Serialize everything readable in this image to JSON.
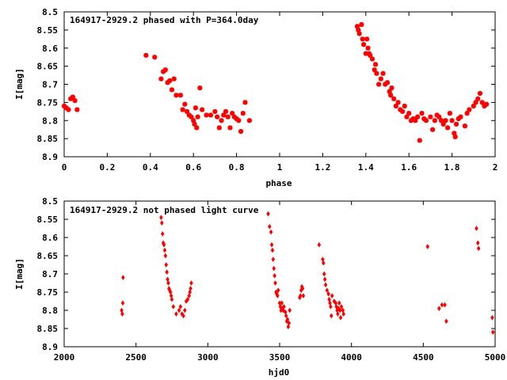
{
  "chart_data": [
    {
      "type": "scatter",
      "title": "164917-2929.2 phased with P=364.0day",
      "xlabel": "phase",
      "ylabel": "I[mag]",
      "xlim": [
        0,
        2
      ],
      "ylim": [
        8.5,
        8.9
      ],
      "y_inverted": true,
      "marker": "star",
      "color": "#ff0000",
      "grid": false,
      "xticks": [
        "0",
        "0.2",
        "0.4",
        "0.6",
        "0.8",
        "1",
        "1.2",
        "1.4",
        "1.6",
        "1.8",
        "2"
      ],
      "yticks": [
        "8.5",
        "8.55",
        "8.6",
        "8.65",
        "8.7",
        "8.75",
        "8.8",
        "8.85",
        "8.9"
      ],
      "points": [
        [
          0.0,
          8.76
        ],
        [
          0.01,
          8.765
        ],
        [
          0.02,
          8.77
        ],
        [
          0.03,
          8.74
        ],
        [
          0.04,
          8.735
        ],
        [
          0.05,
          8.745
        ],
        [
          0.06,
          8.77
        ],
        [
          0.38,
          8.62
        ],
        [
          0.42,
          8.625
        ],
        [
          0.45,
          8.685
        ],
        [
          0.46,
          8.665
        ],
        [
          0.47,
          8.66
        ],
        [
          0.48,
          8.695
        ],
        [
          0.49,
          8.69
        ],
        [
          0.5,
          8.715
        ],
        [
          0.51,
          8.685
        ],
        [
          0.52,
          8.73
        ],
        [
          0.54,
          8.73
        ],
        [
          0.55,
          8.77
        ],
        [
          0.56,
          8.755
        ],
        [
          0.57,
          8.775
        ],
        [
          0.58,
          8.785
        ],
        [
          0.59,
          8.79
        ],
        [
          0.6,
          8.8
        ],
        [
          0.605,
          8.81
        ],
        [
          0.61,
          8.765
        ],
        [
          0.615,
          8.82
        ],
        [
          0.62,
          8.79
        ],
        [
          0.63,
          8.71
        ],
        [
          0.64,
          8.77
        ],
        [
          0.66,
          8.785
        ],
        [
          0.68,
          8.785
        ],
        [
          0.7,
          8.775
        ],
        [
          0.71,
          8.79
        ],
        [
          0.72,
          8.82
        ],
        [
          0.73,
          8.8
        ],
        [
          0.74,
          8.785
        ],
        [
          0.75,
          8.775
        ],
        [
          0.76,
          8.79
        ],
        [
          0.77,
          8.82
        ],
        [
          0.78,
          8.78
        ],
        [
          0.79,
          8.79
        ],
        [
          0.8,
          8.795
        ],
        [
          0.81,
          8.8
        ],
        [
          0.82,
          8.83
        ],
        [
          0.83,
          8.78
        ],
        [
          0.84,
          8.75
        ],
        [
          0.86,
          8.8
        ],
        [
          1.36,
          8.54
        ],
        [
          1.365,
          8.55
        ],
        [
          1.37,
          8.56
        ],
        [
          1.38,
          8.535
        ],
        [
          1.385,
          8.575
        ],
        [
          1.39,
          8.59
        ],
        [
          1.4,
          8.615
        ],
        [
          1.405,
          8.575
        ],
        [
          1.41,
          8.6
        ],
        [
          1.415,
          8.615
        ],
        [
          1.42,
          8.62
        ],
        [
          1.43,
          8.63
        ],
        [
          1.44,
          8.66
        ],
        [
          1.445,
          8.645
        ],
        [
          1.45,
          8.67
        ],
        [
          1.46,
          8.7
        ],
        [
          1.47,
          8.685
        ],
        [
          1.48,
          8.67
        ],
        [
          1.49,
          8.7
        ],
        [
          1.5,
          8.695
        ],
        [
          1.51,
          8.72
        ],
        [
          1.515,
          8.73
        ],
        [
          1.52,
          8.71
        ],
        [
          1.53,
          8.74
        ],
        [
          1.54,
          8.76
        ],
        [
          1.55,
          8.75
        ],
        [
          1.56,
          8.77
        ],
        [
          1.57,
          8.775
        ],
        [
          1.58,
          8.76
        ],
        [
          1.59,
          8.79
        ],
        [
          1.6,
          8.78
        ],
        [
          1.61,
          8.8
        ],
        [
          1.62,
          8.795
        ],
        [
          1.63,
          8.8
        ],
        [
          1.64,
          8.79
        ],
        [
          1.65,
          8.855
        ],
        [
          1.66,
          8.78
        ],
        [
          1.67,
          8.795
        ],
        [
          1.68,
          8.8
        ],
        [
          1.7,
          8.79
        ],
        [
          1.71,
          8.825
        ],
        [
          1.72,
          8.8
        ],
        [
          1.73,
          8.785
        ],
        [
          1.74,
          8.79
        ],
        [
          1.75,
          8.8
        ],
        [
          1.76,
          8.81
        ],
        [
          1.77,
          8.8
        ],
        [
          1.78,
          8.82
        ],
        [
          1.79,
          8.78
        ],
        [
          1.8,
          8.8
        ],
        [
          1.81,
          8.835
        ],
        [
          1.815,
          8.845
        ],
        [
          1.82,
          8.81
        ],
        [
          1.83,
          8.795
        ],
        [
          1.84,
          8.79
        ],
        [
          1.86,
          8.815
        ],
        [
          1.87,
          8.78
        ],
        [
          1.88,
          8.77
        ],
        [
          1.9,
          8.76
        ],
        [
          1.91,
          8.75
        ],
        [
          1.92,
          8.74
        ],
        [
          1.93,
          8.725
        ],
        [
          1.94,
          8.75
        ],
        [
          1.95,
          8.76
        ],
        [
          1.96,
          8.755
        ]
      ]
    },
    {
      "type": "scatter",
      "title": "164917-2929.2 not phased light curve",
      "xlabel": "hjd0",
      "ylabel": "I[mag]",
      "xlim": [
        2000,
        5000
      ],
      "ylim": [
        8.5,
        8.9
      ],
      "y_inverted": true,
      "marker": "diamond",
      "color": "#ff0000",
      "grid": false,
      "xticks": [
        "2000",
        "2500",
        "3000",
        "3500",
        "4000",
        "4500",
        "5000"
      ],
      "yticks": [
        "8.5",
        "8.55",
        "8.6",
        "8.65",
        "8.7",
        "8.75",
        "8.8",
        "8.85",
        "8.9"
      ],
      "points": [
        [
          2400,
          8.8
        ],
        [
          2405,
          8.81
        ],
        [
          2408,
          8.78
        ],
        [
          2410,
          8.71
        ],
        [
          2675,
          8.545
        ],
        [
          2680,
          8.56
        ],
        [
          2685,
          8.59
        ],
        [
          2690,
          8.615
        ],
        [
          2695,
          8.62
        ],
        [
          2700,
          8.635
        ],
        [
          2705,
          8.65
        ],
        [
          2710,
          8.675
        ],
        [
          2715,
          8.695
        ],
        [
          2720,
          8.715
        ],
        [
          2725,
          8.725
        ],
        [
          2730,
          8.74
        ],
        [
          2735,
          8.745
        ],
        [
          2740,
          8.75
        ],
        [
          2745,
          8.76
        ],
        [
          2750,
          8.77
        ],
        [
          2760,
          8.79
        ],
        [
          2780,
          8.81
        ],
        [
          2800,
          8.8
        ],
        [
          2810,
          8.79
        ],
        [
          2820,
          8.81
        ],
        [
          2830,
          8.815
        ],
        [
          2840,
          8.8
        ],
        [
          2850,
          8.775
        ],
        [
          2860,
          8.77
        ],
        [
          2870,
          8.76
        ],
        [
          2875,
          8.75
        ],
        [
          2880,
          8.74
        ],
        [
          2885,
          8.725
        ],
        [
          3420,
          8.535
        ],
        [
          3430,
          8.57
        ],
        [
          3440,
          8.585
        ],
        [
          3445,
          8.62
        ],
        [
          3450,
          8.635
        ],
        [
          3455,
          8.66
        ],
        [
          3460,
          8.685
        ],
        [
          3465,
          8.705
        ],
        [
          3470,
          8.725
        ],
        [
          3475,
          8.75
        ],
        [
          3480,
          8.755
        ],
        [
          3485,
          8.76
        ],
        [
          3490,
          8.745
        ],
        [
          3500,
          8.78
        ],
        [
          3505,
          8.79
        ],
        [
          3510,
          8.8
        ],
        [
          3515,
          8.78
        ],
        [
          3520,
          8.795
        ],
        [
          3525,
          8.8
        ],
        [
          3530,
          8.79
        ],
        [
          3540,
          8.805
        ],
        [
          3545,
          8.815
        ],
        [
          3550,
          8.83
        ],
        [
          3555,
          8.825
        ],
        [
          3560,
          8.845
        ],
        [
          3565,
          8.835
        ],
        [
          3570,
          8.8
        ],
        [
          3640,
          8.765
        ],
        [
          3645,
          8.76
        ],
        [
          3650,
          8.745
        ],
        [
          3655,
          8.735
        ],
        [
          3660,
          8.74
        ],
        [
          3665,
          8.76
        ],
        [
          3775,
          8.62
        ],
        [
          3800,
          8.66
        ],
        [
          3805,
          8.67
        ],
        [
          3810,
          8.7
        ],
        [
          3815,
          8.715
        ],
        [
          3820,
          8.73
        ],
        [
          3830,
          8.745
        ],
        [
          3840,
          8.755
        ],
        [
          3845,
          8.77
        ],
        [
          3850,
          8.78
        ],
        [
          3855,
          8.79
        ],
        [
          3860,
          8.815
        ],
        [
          3865,
          8.76
        ],
        [
          3880,
          8.775
        ],
        [
          3890,
          8.78
        ],
        [
          3895,
          8.79
        ],
        [
          3900,
          8.8
        ],
        [
          3905,
          8.81
        ],
        [
          3910,
          8.795
        ],
        [
          3915,
          8.78
        ],
        [
          3920,
          8.8
        ],
        [
          3925,
          8.82
        ],
        [
          3930,
          8.79
        ],
        [
          3940,
          8.8
        ],
        [
          3945,
          8.81
        ],
        [
          4530,
          8.625
        ],
        [
          4610,
          8.795
        ],
        [
          4630,
          8.785
        ],
        [
          4650,
          8.785
        ],
        [
          4660,
          8.83
        ],
        [
          4870,
          8.575
        ],
        [
          4880,
          8.615
        ],
        [
          4885,
          8.63
        ],
        [
          4980,
          8.82
        ],
        [
          4985,
          8.86
        ]
      ]
    }
  ]
}
